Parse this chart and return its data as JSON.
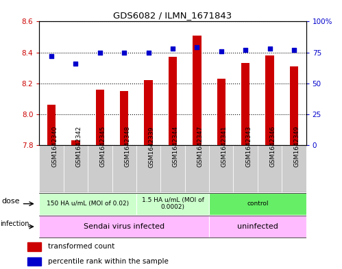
{
  "title": "GDS6082 / ILMN_1671843",
  "samples": [
    "GSM1642340",
    "GSM1642342",
    "GSM1642345",
    "GSM1642348",
    "GSM1642339",
    "GSM1642344",
    "GSM1642347",
    "GSM1642341",
    "GSM1642343",
    "GSM1642346",
    "GSM1642349"
  ],
  "bar_values": [
    8.06,
    7.83,
    8.16,
    8.15,
    8.22,
    8.37,
    8.51,
    8.23,
    8.33,
    8.38,
    8.31
  ],
  "dot_values": [
    72,
    66,
    75,
    75,
    75,
    78,
    79,
    76,
    77,
    78,
    77
  ],
  "ymin": 7.8,
  "ymax": 8.6,
  "y2min": 0,
  "y2max": 100,
  "yticks": [
    7.8,
    8.0,
    8.2,
    8.4,
    8.6
  ],
  "y2ticks": [
    0,
    25,
    50,
    75,
    100
  ],
  "bar_color": "#cc0000",
  "dot_color": "#0000cc",
  "dose_groups": [
    {
      "text": "150 HA u/mL (MOI of 0.02)",
      "start": 0,
      "end": 3,
      "color": "#ccffcc"
    },
    {
      "text": "1.5 HA u/mL (MOI of\n0.0002)",
      "start": 4,
      "end": 6,
      "color": "#ccffcc"
    },
    {
      "text": "control",
      "start": 7,
      "end": 10,
      "color": "#66ee66"
    }
  ],
  "infection_groups": [
    {
      "text": "Sendai virus infected",
      "start": 0,
      "end": 6,
      "color": "#ffbbff"
    },
    {
      "text": "uninfected",
      "start": 7,
      "end": 10,
      "color": "#ffbbff"
    }
  ],
  "bar_width": 0.35,
  "tick_color_left": "#cc0000",
  "tick_color_right": "#0000cc",
  "grid_color": "#000000",
  "sample_bg_color": "#cccccc",
  "label_fontsize": 7,
  "sample_fontsize": 6.5,
  "dose_fontsize": 6.5,
  "infection_fontsize": 8
}
